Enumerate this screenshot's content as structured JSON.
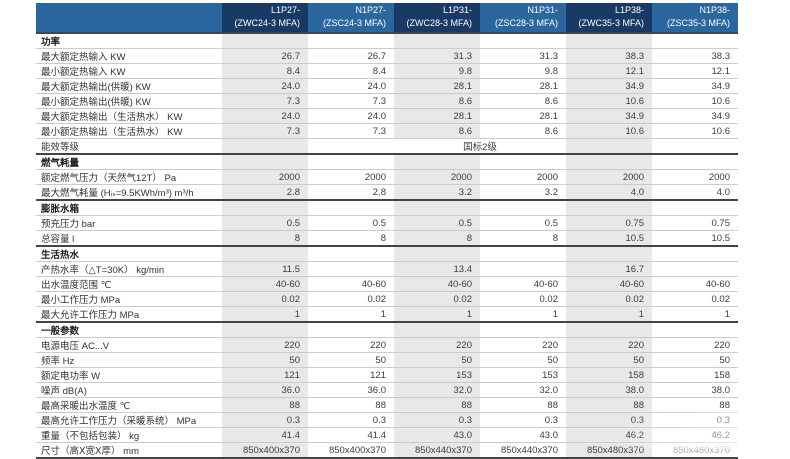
{
  "table": {
    "columns": [
      {
        "line1": "L1P27-",
        "line2": "(ZWC24-3 MFA)",
        "tone": "dark"
      },
      {
        "line1": "N1P27-",
        "line2": "(ZSC24-3 MFA)",
        "tone": "med"
      },
      {
        "line1": "L1P31-",
        "line2": "(ZWC28-3 MFA)",
        "tone": "dark"
      },
      {
        "line1": "N1P31-",
        "line2": "(ZSC28-3 MFA)",
        "tone": "med"
      },
      {
        "line1": "L1P38-",
        "line2": "(ZWC35-3 MFA)",
        "tone": "dark"
      },
      {
        "line1": "N1P38-",
        "line2": "(ZSC35-3 MFA)",
        "tone": "med"
      }
    ],
    "sections": [
      {
        "title": "功率",
        "rows": [
          {
            "label": "最大额定热输入 KW",
            "values": [
              "26.7",
              "26.7",
              "31.3",
              "31.3",
              "38.3",
              "38.3"
            ]
          },
          {
            "label": "最小额定热输入 KW",
            "values": [
              "8.4",
              "8.4",
              "9.8",
              "9.8",
              "12.1",
              "12.1"
            ]
          },
          {
            "label": "最大额定热输出(供暖) KW",
            "values": [
              "24.0",
              "24.0",
              "28.1",
              "28.1",
              "34.9",
              "34.9"
            ]
          },
          {
            "label": "最小额定热输出(供暖) KW",
            "values": [
              "7.3",
              "7.3",
              "8.6",
              "8.6",
              "10.6",
              "10.6"
            ]
          },
          {
            "label": "最大额定热输出（生活热水） KW",
            "values": [
              "24.0",
              "24.0",
              "28.1",
              "28.1",
              "34.9",
              "34.9"
            ]
          },
          {
            "label": "最小额定热输出（生活热水） KW",
            "values": [
              "7.3",
              "7.3",
              "8.6",
              "8.6",
              "10.6",
              "10.6"
            ]
          },
          {
            "label": "能效等级",
            "merged_value": "国标2级"
          }
        ]
      },
      {
        "title": "燃气耗量",
        "rows": [
          {
            "label": "额定燃气压力（天然气12T） Pa",
            "values": [
              "2000",
              "2000",
              "2000",
              "2000",
              "2000",
              "2000"
            ]
          },
          {
            "label": "最大燃气耗量 (Hᵢₛ=9.5KWh/m³) m³/h",
            "values": [
              "2.8",
              "2.8",
              "3.2",
              "3.2",
              "4.0",
              "4.0"
            ]
          }
        ]
      },
      {
        "title": "膨胀水箱",
        "rows": [
          {
            "label": "预充压力 bar",
            "values": [
              "0.5",
              "0.5",
              "0.5",
              "0.5",
              "0.75",
              "0.75"
            ]
          },
          {
            "label": "总容量 l",
            "values": [
              "8",
              "8",
              "8",
              "8",
              "10.5",
              "10.5"
            ]
          }
        ]
      },
      {
        "title": "生活热水",
        "rows": [
          {
            "label": "产热水率（△T=30K）  kg/min",
            "values": [
              "11.5",
              "",
              "13.4",
              "",
              "16.7",
              ""
            ]
          },
          {
            "label": "出水温度范围 ℃",
            "values": [
              "40-60",
              "40-60",
              "40-60",
              "40-60",
              "40-60",
              "40-60"
            ]
          },
          {
            "label": "最小工作压力 MPa",
            "values": [
              "0.02",
              "0.02",
              "0.02",
              "0.02",
              "0.02",
              "0.02"
            ]
          },
          {
            "label": "最大允许工作压力 MPa",
            "values": [
              "1",
              "1",
              "1",
              "1",
              "1",
              "1"
            ]
          }
        ]
      },
      {
        "title": "一般参数",
        "rows": [
          {
            "label": "电源电压 AC...V",
            "values": [
              "220",
              "220",
              "220",
              "220",
              "220",
              "220"
            ]
          },
          {
            "label": "频率 Hz",
            "values": [
              "50",
              "50",
              "50",
              "50",
              "50",
              "50"
            ]
          },
          {
            "label": "额定电功率 W",
            "values": [
              "121",
              "121",
              "153",
              "153",
              "158",
              "158"
            ]
          },
          {
            "label": "噪声 dB(A)",
            "values": [
              "36.0",
              "36.0",
              "32.0",
              "32.0",
              "38.0",
              "38.0"
            ]
          },
          {
            "label": "最高采暖出水温度 ℃",
            "values": [
              "88",
              "88",
              "88",
              "88",
              "88",
              "88"
            ]
          },
          {
            "label": "最高允许工作压力（采暖系统） MPa",
            "values": [
              "0.3",
              "0.3",
              "0.3",
              "0.3",
              "0.3",
              "0.3"
            ]
          },
          {
            "label": "重量（不包括包装） kg",
            "values": [
              "41.4",
              "41.4",
              "43.0",
              "43.0",
              "46.2",
              "46.2"
            ]
          },
          {
            "label": "尺寸（高Ⅹ宽Ⅹ厚）  mm",
            "values": [
              "850x400x370",
              "850x400x370",
              "850x440x370",
              "850x440x370",
              "850x480x370",
              "850x480x370"
            ],
            "dim": true
          }
        ]
      }
    ]
  },
  "colors": {
    "header_dark": "#1a3a66",
    "header_medium": "#2b679f",
    "column_stripe": "#e8e8e8",
    "row_separator": "#cbcbcb",
    "section_line": "#444444",
    "text": "#3c3c3c"
  }
}
